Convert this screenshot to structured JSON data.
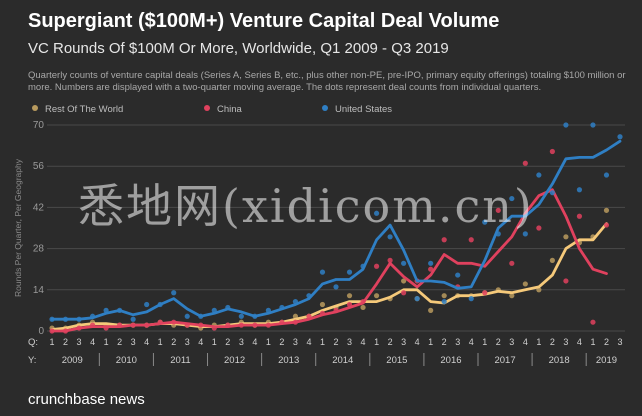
{
  "title": "Supergiant ($100M+) Venture Capital Deal Volume",
  "subtitle": "VC Rounds Of $100M Or More, Worldwide, Q1 2009 - Q3 2019",
  "description": "Quarterly counts of venture capital deals (Series A, Series B, etc., plus other non-PE, pre-IPO, primary equity offerings) totaling $100 million or more. Numbers are displayed with a two-quarter moving average. The dots represent deal counts from individual quarters.",
  "brand": "crunchbase news",
  "watermark": "悉地网(xidicom.cn)",
  "colors": {
    "background": "#2b2b2b",
    "rest_of_world": "#f5c97a",
    "china": "#e0415e",
    "united_states": "#2f7fc4",
    "grid": "#4a4a4a"
  },
  "chart_data": {
    "type": "line",
    "ylabel": "Rounds Per Quarter, Per Geography",
    "ylim": [
      0,
      70
    ],
    "yticks": [
      0,
      14,
      28,
      42,
      56,
      70
    ],
    "grid": true,
    "legend_position": "top-left",
    "quarter_row_label": "Q:",
    "year_row_label": "Y:",
    "years": [
      "2009",
      "2010",
      "2011",
      "2012",
      "2013",
      "2014",
      "2015",
      "2016",
      "2017",
      "2018",
      "2019"
    ],
    "x": [
      "2009 Q1",
      "2009 Q2",
      "2009 Q3",
      "2009 Q4",
      "2010 Q1",
      "2010 Q2",
      "2010 Q3",
      "2010 Q4",
      "2011 Q1",
      "2011 Q2",
      "2011 Q3",
      "2011 Q4",
      "2012 Q1",
      "2012 Q2",
      "2012 Q3",
      "2012 Q4",
      "2013 Q1",
      "2013 Q2",
      "2013 Q3",
      "2013 Q4",
      "2014 Q1",
      "2014 Q2",
      "2014 Q3",
      "2014 Q4",
      "2015 Q1",
      "2015 Q2",
      "2015 Q3",
      "2015 Q4",
      "2016 Q1",
      "2016 Q2",
      "2016 Q3",
      "2016 Q4",
      "2017 Q1",
      "2017 Q2",
      "2017 Q3",
      "2017 Q4",
      "2018 Q1",
      "2018 Q2",
      "2018 Q3",
      "2018 Q4",
      "2019 Q1",
      "2019 Q2",
      "2019 Q3"
    ],
    "quarter_labels": [
      "1",
      "2",
      "3",
      "4",
      "1",
      "2",
      "3",
      "4",
      "1",
      "2",
      "3",
      "4",
      "1",
      "2",
      "3",
      "4",
      "1",
      "2",
      "3",
      "4",
      "1",
      "2",
      "3",
      "4",
      "1",
      "2",
      "3",
      "4",
      "1",
      "2",
      "3",
      "4",
      "1",
      "2",
      "3",
      "4",
      "1",
      "2",
      "3",
      "4",
      "1",
      "2",
      "3"
    ],
    "series": [
      {
        "name": "Rest Of The World",
        "color": "#f5c97a",
        "moving_average": [
          0.5,
          1,
          2,
          2.5,
          2.5,
          2,
          2,
          2,
          2.5,
          2.5,
          2,
          1.5,
          1.5,
          2,
          2.5,
          2.5,
          2.5,
          3,
          4,
          5,
          7,
          8.5,
          10,
          10,
          10,
          11.5,
          14,
          14,
          10,
          9.5,
          12,
          12,
          12.5,
          13.5,
          13,
          14,
          15,
          19,
          28,
          31,
          31,
          36.5,
          null
        ],
        "quarterly": [
          1,
          1,
          2,
          3,
          2,
          2,
          2,
          2,
          3,
          2,
          2,
          1,
          2,
          2,
          3,
          2,
          3,
          3,
          5,
          5,
          9,
          8,
          12,
          8,
          12,
          11,
          17,
          11,
          7,
          12,
          12,
          12,
          13,
          14,
          12,
          16,
          14,
          24,
          32,
          30,
          32,
          41,
          null
        ]
      },
      {
        "name": "China",
        "color": "#e0415e",
        "moving_average": [
          0,
          0,
          1,
          1.5,
          1.5,
          1.5,
          2,
          2,
          2.5,
          3,
          2.5,
          2,
          1.5,
          1.5,
          2,
          2,
          2,
          2.5,
          3,
          4,
          5.5,
          6.5,
          8,
          9.5,
          16,
          23,
          18.5,
          15,
          19,
          26,
          23,
          23,
          22,
          27,
          32,
          40,
          46,
          48,
          39,
          28,
          21,
          19.5,
          null
        ],
        "quarterly": [
          0,
          0,
          1,
          2,
          1,
          2,
          2,
          2,
          3,
          3,
          2,
          2,
          1,
          2,
          2,
          2,
          2,
          3,
          3,
          5,
          6,
          7,
          9,
          10,
          22,
          24,
          13,
          17,
          21,
          31,
          15,
          31,
          13,
          41,
          23,
          57,
          35,
          61,
          17,
          39,
          3,
          36,
          null
        ]
      },
      {
        "name": "United States",
        "color": "#2f7fc4",
        "moving_average": [
          4,
          4,
          4,
          4.5,
          6,
          7,
          5.5,
          6.5,
          9,
          11,
          7.5,
          5,
          6,
          7.5,
          6.5,
          5,
          6,
          7.5,
          9,
          11,
          16,
          17.5,
          17.5,
          21,
          31,
          36,
          27.5,
          17,
          17,
          16.5,
          14.5,
          15,
          24,
          35,
          39,
          39,
          43,
          50,
          58.5,
          59,
          59,
          61.5,
          64.5
        ],
        "quarterly": [
          4,
          4,
          4,
          5,
          7,
          7,
          4,
          9,
          9,
          13,
          5,
          5,
          7,
          8,
          5,
          5,
          7,
          8,
          10,
          12,
          20,
          15,
          20,
          22,
          40,
          32,
          23,
          11,
          23,
          10,
          19,
          11,
          37,
          33,
          45,
          33,
          53,
          47,
          70,
          48,
          70,
          53,
          66
        ]
      }
    ]
  }
}
